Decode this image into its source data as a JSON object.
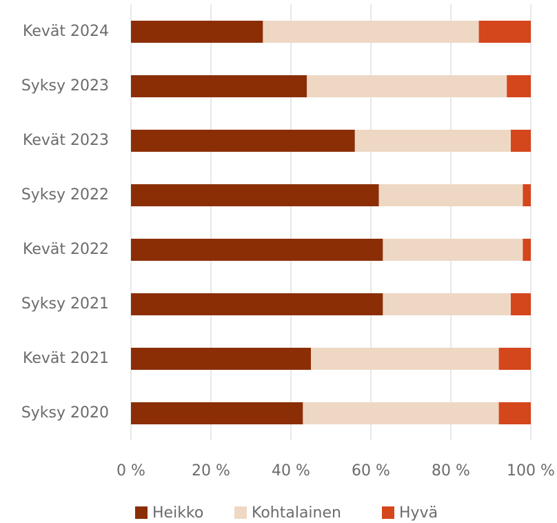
{
  "chart_data": {
    "type": "stacked-barh",
    "categories": [
      "Kevät 2024",
      "Syksy 2023",
      "Kevät 2023",
      "Syksy 2022",
      "Kevät 2022",
      "Syksy 2021",
      "Kevät 2021",
      "Syksy 2020"
    ],
    "series": [
      {
        "name": "Heikko",
        "color": "#8b2e06",
        "values": [
          33,
          44,
          56,
          62,
          63,
          63,
          45,
          43
        ]
      },
      {
        "name": "Kohtalainen",
        "color": "#eed8c4",
        "values": [
          54,
          50,
          39,
          36,
          35,
          32,
          47,
          49
        ]
      },
      {
        "name": "Hyvä",
        "color": "#d4461b",
        "values": [
          13,
          6,
          5,
          2,
          2,
          5,
          8,
          8
        ]
      }
    ],
    "xlim": [
      0,
      100
    ],
    "xticks": [
      {
        "value": 0,
        "label": "0 %"
      },
      {
        "value": 20,
        "label": "20 %"
      },
      {
        "value": 40,
        "label": "40 %"
      },
      {
        "value": 60,
        "label": "60 %"
      },
      {
        "value": 80,
        "label": "80 %"
      },
      {
        "value": 100,
        "label": "100 %"
      }
    ],
    "grid": true,
    "legend": "bottom"
  }
}
